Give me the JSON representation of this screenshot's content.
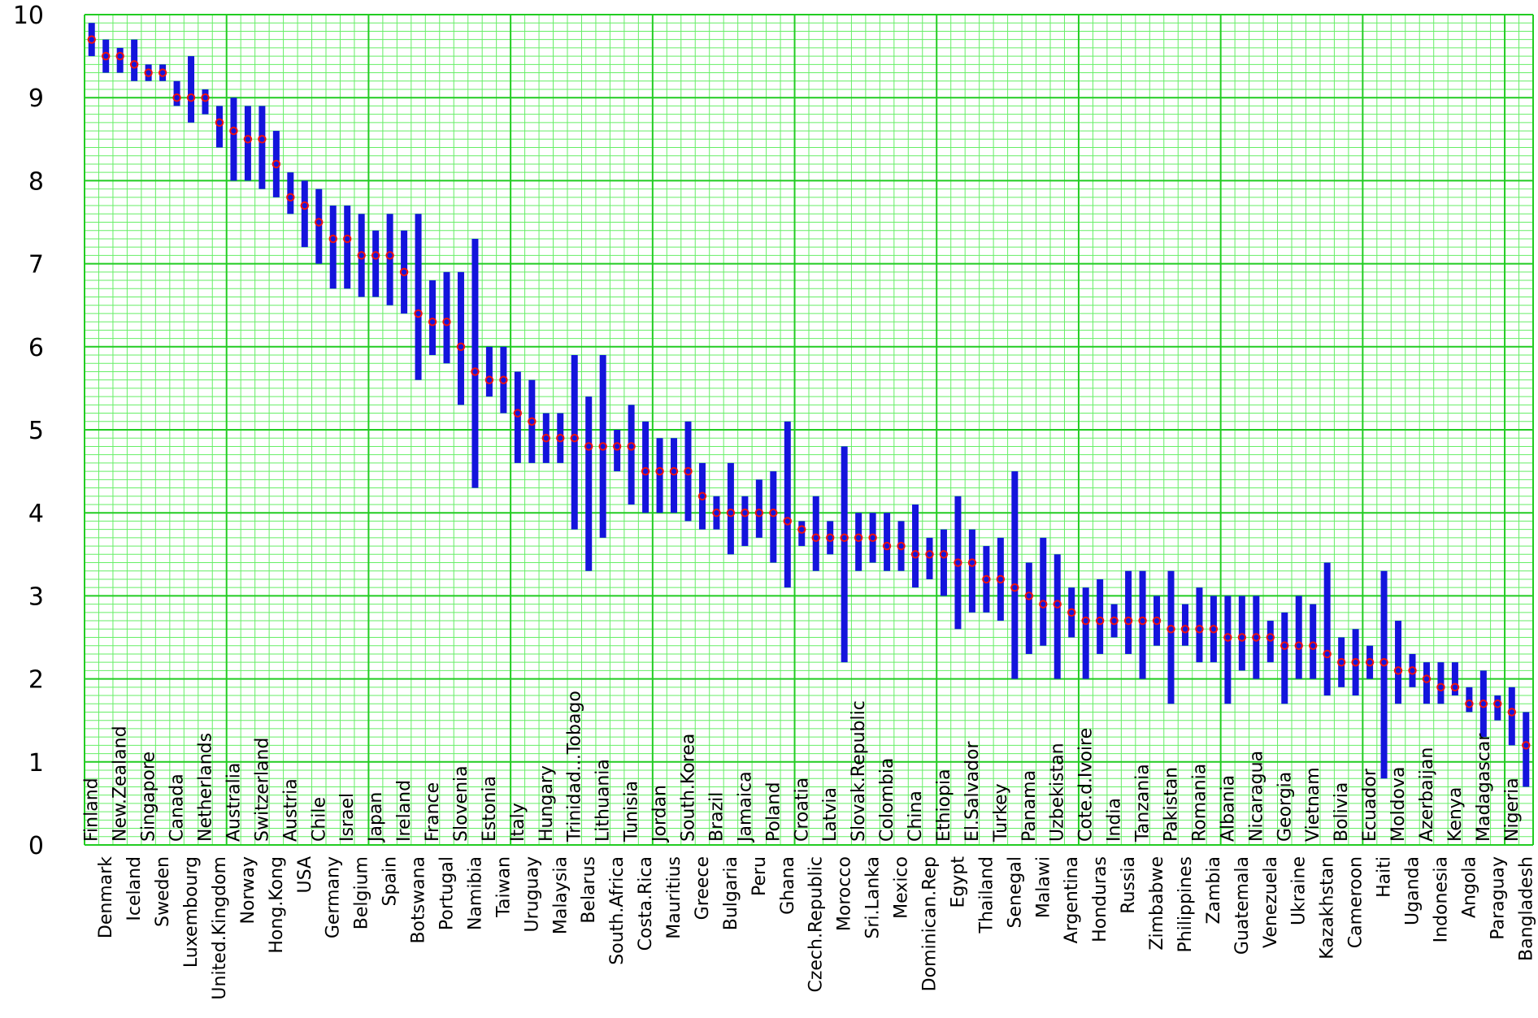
{
  "chart_data": {
    "type": "error-bar",
    "title": "",
    "xlabel": "",
    "ylabel": "",
    "ylim": [
      0,
      10
    ],
    "yticks": [
      "0",
      "1",
      "2",
      "3",
      "4",
      "5",
      "6",
      "7",
      "8",
      "9",
      "10"
    ],
    "grid": true,
    "colors": {
      "grid_minor": "#66ee66",
      "grid_major": "#22cc22",
      "range_bar": "#1414dc",
      "point_marker": "#ee1111",
      "background": "#ffffff",
      "text": "#000000"
    },
    "countries": [
      {
        "name": "Finland",
        "value": 9.7,
        "low": 9.5,
        "high": 9.9
      },
      {
        "name": "Denmark",
        "value": 9.5,
        "low": 9.3,
        "high": 9.7
      },
      {
        "name": "New.Zealand",
        "value": 9.5,
        "low": 9.3,
        "high": 9.6
      },
      {
        "name": "Iceland",
        "value": 9.4,
        "low": 9.2,
        "high": 9.7
      },
      {
        "name": "Singapore",
        "value": 9.3,
        "low": 9.2,
        "high": 9.4
      },
      {
        "name": "Sweden",
        "value": 9.3,
        "low": 9.2,
        "high": 9.4
      },
      {
        "name": "Canada",
        "value": 9.0,
        "low": 8.9,
        "high": 9.2
      },
      {
        "name": "Luxembourg",
        "value": 9.0,
        "low": 8.7,
        "high": 9.5
      },
      {
        "name": "Netherlands",
        "value": 9.0,
        "low": 8.8,
        "high": 9.1
      },
      {
        "name": "United.Kingdom",
        "value": 8.7,
        "low": 8.4,
        "high": 8.9
      },
      {
        "name": "Australia",
        "value": 8.6,
        "low": 8.0,
        "high": 9.0
      },
      {
        "name": "Norway",
        "value": 8.5,
        "low": 8.0,
        "high": 8.9
      },
      {
        "name": "Switzerland",
        "value": 8.5,
        "low": 7.9,
        "high": 8.9
      },
      {
        "name": "Hong.Kong",
        "value": 8.2,
        "low": 7.8,
        "high": 8.6
      },
      {
        "name": "Austria",
        "value": 7.8,
        "low": 7.6,
        "high": 8.1
      },
      {
        "name": "USA",
        "value": 7.7,
        "low": 7.2,
        "high": 8.0
      },
      {
        "name": "Chile",
        "value": 7.5,
        "low": 7.0,
        "high": 7.9
      },
      {
        "name": "Germany",
        "value": 7.3,
        "low": 6.7,
        "high": 7.7
      },
      {
        "name": "Israel",
        "value": 7.3,
        "low": 6.7,
        "high": 7.7
      },
      {
        "name": "Belgium",
        "value": 7.1,
        "low": 6.6,
        "high": 7.6
      },
      {
        "name": "Japan",
        "value": 7.1,
        "low": 6.6,
        "high": 7.4
      },
      {
        "name": "Spain",
        "value": 7.1,
        "low": 6.5,
        "high": 7.6
      },
      {
        "name": "Ireland",
        "value": 6.9,
        "low": 6.4,
        "high": 7.4
      },
      {
        "name": "Botswana",
        "value": 6.4,
        "low": 5.6,
        "high": 7.6
      },
      {
        "name": "France",
        "value": 6.3,
        "low": 5.9,
        "high": 6.8
      },
      {
        "name": "Portugal",
        "value": 6.3,
        "low": 5.8,
        "high": 6.9
      },
      {
        "name": "Slovenia",
        "value": 6.0,
        "low": 5.3,
        "high": 6.9
      },
      {
        "name": "Namibia",
        "value": 5.7,
        "low": 4.3,
        "high": 7.3
      },
      {
        "name": "Estonia",
        "value": 5.6,
        "low": 5.4,
        "high": 6.0
      },
      {
        "name": "Taiwan",
        "value": 5.6,
        "low": 5.2,
        "high": 6.0
      },
      {
        "name": "Italy",
        "value": 5.2,
        "low": 4.6,
        "high": 5.7
      },
      {
        "name": "Uruguay",
        "value": 5.1,
        "low": 4.6,
        "high": 5.6
      },
      {
        "name": "Hungary",
        "value": 4.9,
        "low": 4.6,
        "high": 5.2
      },
      {
        "name": "Malaysia",
        "value": 4.9,
        "low": 4.6,
        "high": 5.2
      },
      {
        "name": "Trinidad...Tobago",
        "value": 4.9,
        "low": 3.8,
        "high": 5.9
      },
      {
        "name": "Belarus",
        "value": 4.8,
        "low": 3.3,
        "high": 5.4
      },
      {
        "name": "Lithuania",
        "value": 4.8,
        "low": 3.7,
        "high": 5.9
      },
      {
        "name": "South.Africa",
        "value": 4.8,
        "low": 4.5,
        "high": 5.0
      },
      {
        "name": "Tunisia",
        "value": 4.8,
        "low": 4.1,
        "high": 5.3
      },
      {
        "name": "Costa.Rica",
        "value": 4.5,
        "low": 4.0,
        "high": 5.1
      },
      {
        "name": "Jordan",
        "value": 4.5,
        "low": 4.0,
        "high": 4.9
      },
      {
        "name": "Mauritius",
        "value": 4.5,
        "low": 4.0,
        "high": 4.9
      },
      {
        "name": "South.Korea",
        "value": 4.5,
        "low": 3.9,
        "high": 5.1
      },
      {
        "name": "Greece",
        "value": 4.2,
        "low": 3.8,
        "high": 4.6
      },
      {
        "name": "Brazil",
        "value": 4.0,
        "low": 3.8,
        "high": 4.2
      },
      {
        "name": "Bulgaria",
        "value": 4.0,
        "low": 3.5,
        "high": 4.6
      },
      {
        "name": "Jamaica",
        "value": 4.0,
        "low": 3.6,
        "high": 4.2
      },
      {
        "name": "Peru",
        "value": 4.0,
        "low": 3.7,
        "high": 4.4
      },
      {
        "name": "Poland",
        "value": 4.0,
        "low": 3.4,
        "high": 4.5
      },
      {
        "name": "Ghana",
        "value": 3.9,
        "low": 3.1,
        "high": 5.1
      },
      {
        "name": "Croatia",
        "value": 3.8,
        "low": 3.6,
        "high": 3.9
      },
      {
        "name": "Czech.Republic",
        "value": 3.7,
        "low": 3.3,
        "high": 4.2
      },
      {
        "name": "Latvia",
        "value": 3.7,
        "low": 3.5,
        "high": 3.9
      },
      {
        "name": "Morocco",
        "value": 3.7,
        "low": 2.2,
        "high": 4.8
      },
      {
        "name": "Slovak.Republic",
        "value": 3.7,
        "low": 3.3,
        "high": 4.0
      },
      {
        "name": "Sri.Lanka",
        "value": 3.7,
        "low": 3.4,
        "high": 4.0
      },
      {
        "name": "Colombia",
        "value": 3.6,
        "low": 3.3,
        "high": 4.0
      },
      {
        "name": "Mexico",
        "value": 3.6,
        "low": 3.3,
        "high": 3.9
      },
      {
        "name": "China",
        "value": 3.5,
        "low": 3.1,
        "high": 4.1
      },
      {
        "name": "Dominican.Rep",
        "value": 3.5,
        "low": 3.2,
        "high": 3.7
      },
      {
        "name": "Ethiopia",
        "value": 3.5,
        "low": 3.0,
        "high": 3.8
      },
      {
        "name": "Egypt",
        "value": 3.4,
        "low": 2.6,
        "high": 4.2
      },
      {
        "name": "El.Salvador",
        "value": 3.4,
        "low": 2.8,
        "high": 3.8
      },
      {
        "name": "Thailand",
        "value": 3.2,
        "low": 2.8,
        "high": 3.6
      },
      {
        "name": "Turkey",
        "value": 3.2,
        "low": 2.7,
        "high": 3.7
      },
      {
        "name": "Senegal",
        "value": 3.1,
        "low": 2.0,
        "high": 4.5
      },
      {
        "name": "Panama",
        "value": 3.0,
        "low": 2.3,
        "high": 3.4
      },
      {
        "name": "Malawi",
        "value": 2.9,
        "low": 2.4,
        "high": 3.7
      },
      {
        "name": "Uzbekistan",
        "value": 2.9,
        "low": 2.0,
        "high": 3.5
      },
      {
        "name": "Argentina",
        "value": 2.8,
        "low": 2.5,
        "high": 3.1
      },
      {
        "name": "Cote.d.Ivoire",
        "value": 2.7,
        "low": 2.0,
        "high": 3.1
      },
      {
        "name": "Honduras",
        "value": 2.7,
        "low": 2.3,
        "high": 3.2
      },
      {
        "name": "India",
        "value": 2.7,
        "low": 2.5,
        "high": 2.9
      },
      {
        "name": "Russia",
        "value": 2.7,
        "low": 2.3,
        "high": 3.3
      },
      {
        "name": "Tanzania",
        "value": 2.7,
        "low": 2.0,
        "high": 3.3
      },
      {
        "name": "Zimbabwe",
        "value": 2.7,
        "low": 2.4,
        "high": 3.0
      },
      {
        "name": "Pakistan",
        "value": 2.6,
        "low": 1.7,
        "high": 3.3
      },
      {
        "name": "Philippines",
        "value": 2.6,
        "low": 2.4,
        "high": 2.9
      },
      {
        "name": "Romania",
        "value": 2.6,
        "low": 2.2,
        "high": 3.1
      },
      {
        "name": "Zambia",
        "value": 2.6,
        "low": 2.2,
        "high": 3.0
      },
      {
        "name": "Albania",
        "value": 2.5,
        "low": 1.7,
        "high": 3.0
      },
      {
        "name": "Guatemala",
        "value": 2.5,
        "low": 2.1,
        "high": 3.0
      },
      {
        "name": "Nicaragua",
        "value": 2.5,
        "low": 2.0,
        "high": 3.0
      },
      {
        "name": "Venezuela",
        "value": 2.5,
        "low": 2.2,
        "high": 2.7
      },
      {
        "name": "Georgia",
        "value": 2.4,
        "low": 1.7,
        "high": 2.8
      },
      {
        "name": "Ukraine",
        "value": 2.4,
        "low": 2.0,
        "high": 3.0
      },
      {
        "name": "Vietnam",
        "value": 2.4,
        "low": 2.0,
        "high": 2.9
      },
      {
        "name": "Kazakhstan",
        "value": 2.3,
        "low": 1.8,
        "high": 3.4
      },
      {
        "name": "Bolivia",
        "value": 2.2,
        "low": 1.9,
        "high": 2.5
      },
      {
        "name": "Cameroon",
        "value": 2.2,
        "low": 1.8,
        "high": 2.6
      },
      {
        "name": "Ecuador",
        "value": 2.2,
        "low": 2.0,
        "high": 2.4
      },
      {
        "name": "Haiti",
        "value": 2.2,
        "low": 0.8,
        "high": 3.3
      },
      {
        "name": "Moldova",
        "value": 2.1,
        "low": 1.7,
        "high": 2.7
      },
      {
        "name": "Uganda",
        "value": 2.1,
        "low": 1.9,
        "high": 2.3
      },
      {
        "name": "Azerbaijan",
        "value": 2.0,
        "low": 1.7,
        "high": 2.2
      },
      {
        "name": "Indonesia",
        "value": 1.9,
        "low": 1.7,
        "high": 2.2
      },
      {
        "name": "Kenya",
        "value": 1.9,
        "low": 1.8,
        "high": 2.2
      },
      {
        "name": "Angola",
        "value": 1.7,
        "low": 1.6,
        "high": 1.9
      },
      {
        "name": "Madagascar",
        "value": 1.7,
        "low": 1.3,
        "high": 2.1
      },
      {
        "name": "Paraguay",
        "value": 1.7,
        "low": 1.5,
        "high": 1.8
      },
      {
        "name": "Nigeria",
        "value": 1.6,
        "low": 1.2,
        "high": 1.9
      },
      {
        "name": "Bangladesh",
        "value": 1.2,
        "low": 0.7,
        "high": 1.6
      }
    ]
  }
}
